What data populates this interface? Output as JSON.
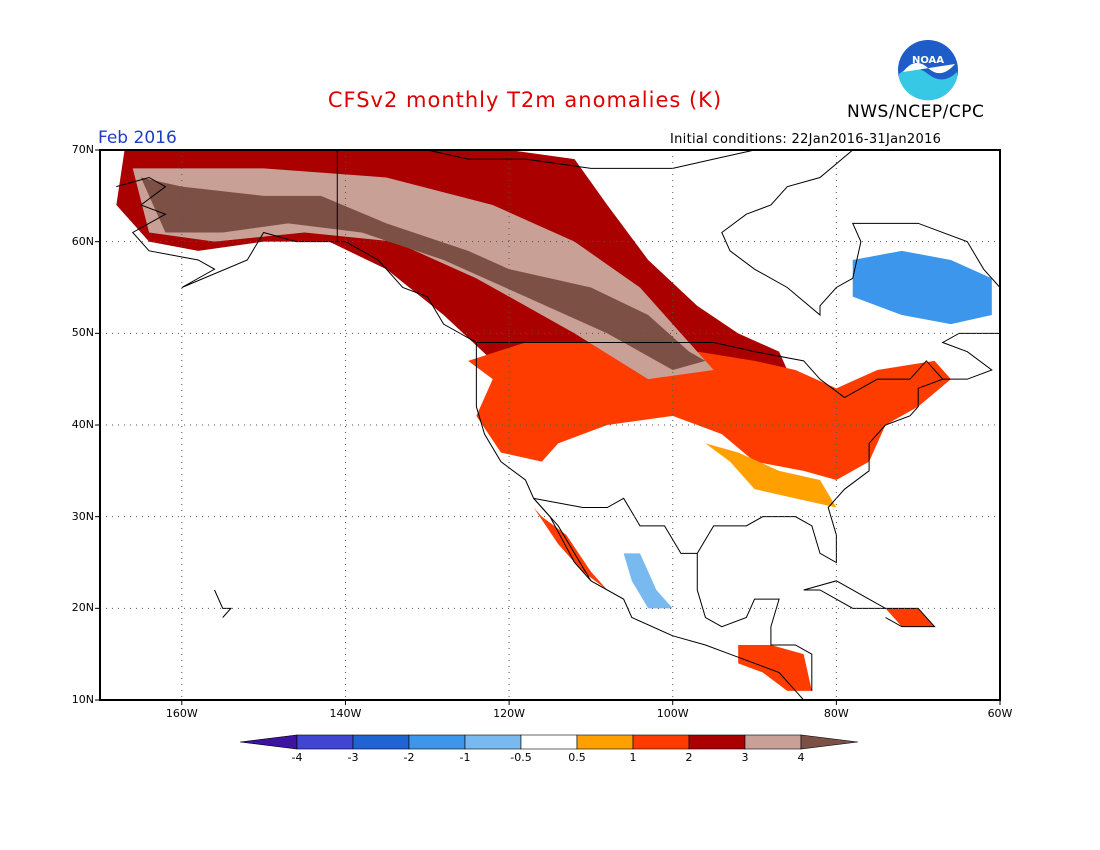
{
  "title": "CFSv2 monthly T2m anomalies (K)",
  "producer": "NWS/NCEP/CPC",
  "logo_text": "NOAA",
  "valid_month": "Feb 2016",
  "initial_conditions": "Initial conditions: 22Jan2016-31Jan2016",
  "lat_labels": [
    "70N",
    "60N",
    "50N",
    "40N",
    "30N",
    "20N",
    "10N"
  ],
  "lon_labels": [
    "160W",
    "140W",
    "120W",
    "100W",
    "80W",
    "60W"
  ],
  "colorbar": {
    "labels": [
      "-4",
      "-3",
      "-2",
      "-1",
      "-0.5",
      "0.5",
      "1",
      "2",
      "3",
      "4"
    ],
    "colors": [
      "#3c14a0",
      "#4046d2",
      "#1e64d2",
      "#3c96eb",
      "#78b9f0",
      "#ffffff",
      "#ffa000",
      "#ff3c00",
      "#aa0000",
      "#c8a096",
      "#7d5046"
    ]
  },
  "extent": {
    "lon": [
      -170,
      -60
    ],
    "lat": [
      10,
      70
    ]
  },
  "anomaly_regions": [
    {
      "level": "3-4",
      "desc": "brown max",
      "poly": [
        [
          -165,
          67
        ],
        [
          -160,
          66
        ],
        [
          -150,
          65
        ],
        [
          -143,
          65
        ],
        [
          -135,
          62
        ],
        [
          -125,
          59
        ],
        [
          -120,
          57
        ],
        [
          -110,
          55
        ],
        [
          -103,
          52
        ],
        [
          -98,
          48
        ],
        [
          -96,
          47
        ],
        [
          -100,
          46
        ],
        [
          -108,
          50
        ],
        [
          -118,
          54
        ],
        [
          -128,
          58
        ],
        [
          -138,
          61
        ],
        [
          -147,
          62
        ],
        [
          -155,
          61
        ],
        [
          -162,
          61
        ]
      ]
    },
    {
      "level": "2-3",
      "desc": "dark red band",
      "poly": [
        [
          -167,
          70
        ],
        [
          -150,
          70
        ],
        [
          -135,
          70
        ],
        [
          -120,
          70
        ],
        [
          -112,
          69
        ],
        [
          -108,
          64
        ],
        [
          -103,
          58
        ],
        [
          -97,
          53
        ],
        [
          -92,
          50
        ],
        [
          -87,
          48
        ],
        [
          -86,
          46
        ],
        [
          -95,
          44
        ],
        [
          -105,
          42
        ],
        [
          -115,
          44
        ],
        [
          -122,
          47
        ],
        [
          -128,
          52
        ],
        [
          -135,
          57
        ],
        [
          -142,
          60
        ],
        [
          -150,
          60
        ],
        [
          -158,
          59
        ],
        [
          -164,
          60
        ],
        [
          -168,
          64
        ]
      ]
    },
    {
      "level": "1-2",
      "desc": "red US",
      "poly": [
        [
          -125,
          47
        ],
        [
          -122,
          45
        ],
        [
          -124,
          41
        ],
        [
          -121,
          37
        ],
        [
          -116,
          36
        ],
        [
          -114,
          38
        ],
        [
          -108,
          40
        ],
        [
          -100,
          41
        ],
        [
          -94,
          39
        ],
        [
          -90,
          36
        ],
        [
          -84,
          35
        ],
        [
          -80,
          34
        ],
        [
          -76,
          36
        ],
        [
          -74,
          40
        ],
        [
          -70,
          42
        ],
        [
          -66,
          45
        ],
        [
          -68,
          47
        ],
        [
          -75,
          46
        ],
        [
          -80,
          44
        ],
        [
          -85,
          46
        ],
        [
          -90,
          47
        ],
        [
          -97,
          48
        ],
        [
          -108,
          49
        ],
        [
          -118,
          49
        ]
      ]
    },
    {
      "level": "0.5-1",
      "desc": "orange",
      "poly": [
        [
          -96,
          38
        ],
        [
          -93,
          36
        ],
        [
          -90,
          33
        ],
        [
          -85,
          32
        ],
        [
          -80,
          31
        ],
        [
          -82,
          34
        ],
        [
          -87,
          35
        ],
        [
          -92,
          37
        ]
      ]
    },
    {
      "level": "-1 to -2",
      "desc": "blue Quebec",
      "poly": [
        [
          -78,
          58
        ],
        [
          -72,
          59
        ],
        [
          -66,
          58
        ],
        [
          -61,
          56
        ],
        [
          -61,
          52
        ],
        [
          -66,
          51
        ],
        [
          -72,
          52
        ],
        [
          -78,
          54
        ]
      ]
    },
    {
      "level": "-0.5 to -1",
      "desc": "blue Mexico",
      "poly": [
        [
          -106,
          26
        ],
        [
          -104,
          26
        ],
        [
          -102,
          22
        ],
        [
          -100,
          20
        ],
        [
          -103,
          20
        ],
        [
          -105,
          23
        ]
      ]
    },
    {
      "level": "1-2",
      "desc": "red Mexico west",
      "poly": [
        [
          -116,
          30
        ],
        [
          -113,
          28
        ],
        [
          -110,
          24
        ],
        [
          -108,
          22
        ],
        [
          -111,
          24
        ],
        [
          -114,
          27
        ],
        [
          -117,
          31
        ]
      ]
    },
    {
      "level": "1-2",
      "desc": "red Central America",
      "poly": [
        [
          -92,
          16
        ],
        [
          -88,
          16
        ],
        [
          -84,
          15
        ],
        [
          -83,
          11
        ],
        [
          -86,
          11
        ],
        [
          -89,
          13
        ],
        [
          -92,
          14
        ]
      ]
    },
    {
      "level": "1-2",
      "desc": "red Caribbean",
      "poly": [
        [
          -74,
          20
        ],
        [
          -70,
          20
        ],
        [
          -68,
          18
        ],
        [
          -72,
          18
        ]
      ]
    }
  ]
}
